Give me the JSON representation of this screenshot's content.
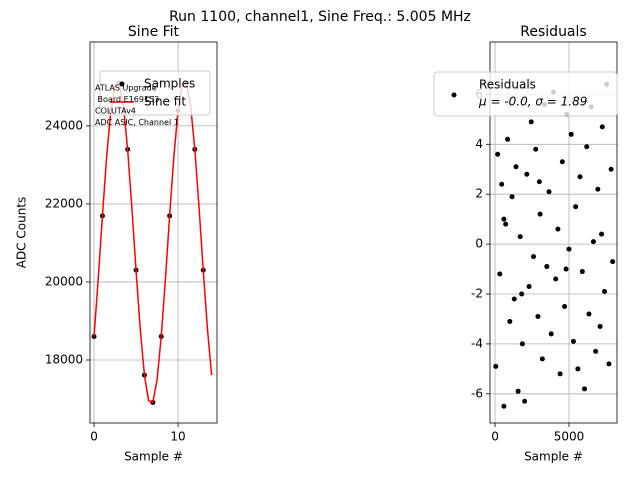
{
  "title": "Run 1100, channel1, Sine Freq.: 5.005 MHz",
  "chart_data": [
    {
      "type": "line",
      "title": "Sine Fit",
      "x_label": "Sample #",
      "y_label": "ADC Counts",
      "xlim": [
        -0.48,
        14.64
      ],
      "ylim": [
        16385,
        26150
      ],
      "xticks": [
        0,
        10
      ],
      "yticks": [
        18000,
        20000,
        22000,
        24000
      ],
      "grid": true,
      "legend": "upper right",
      "annotation": [
        "ATLAS Upgrade",
        " Board E169153",
        "COLUTAv4",
        "ADC ASIC, Channel 1"
      ],
      "series": [
        {
          "name": "Samples",
          "color": "#000000",
          "type": "scatter",
          "x": [
            0,
            1,
            2,
            3,
            4,
            5,
            6,
            7,
            8,
            9,
            10,
            11,
            12,
            13
          ],
          "values": [
            18601,
            21694,
            24387,
            25093,
            23399,
            20303,
            17613,
            16912,
            18601,
            21694,
            24387,
            25093,
            23399,
            20303
          ]
        },
        {
          "name": "Sine fit",
          "color": "#ff0000",
          "type": "line",
          "x": [
            0,
            0.5,
            1,
            1.5,
            2,
            2.5,
            3,
            3.5,
            4,
            4.5,
            5,
            5.5,
            6,
            6.5,
            7,
            7.5,
            8,
            8.5,
            9,
            9.5,
            10,
            10.5,
            11,
            11.5,
            12,
            12.5,
            13,
            13.5,
            14
          ],
          "values": [
            18601,
            20078,
            21694,
            23208,
            24387,
            25047,
            25093,
            24515,
            23399,
            21921,
            20303,
            18800,
            17613,
            16954,
            16912,
            17485,
            18601,
            20078,
            21694,
            23208,
            24387,
            25047,
            25093,
            24515,
            23399,
            21921,
            20303,
            18800,
            17613
          ]
        }
      ]
    },
    {
      "type": "scatter",
      "title": "Residuals",
      "x_label": "Sample #",
      "xlim": [
        -340,
        8245
      ],
      "ylim": [
        -7.17,
        8.1
      ],
      "xticks": [
        0,
        5000
      ],
      "yticks": [
        -6,
        -4,
        -2,
        0,
        2,
        4,
        6
      ],
      "grid": true,
      "legend": "upper right",
      "stats_label": "μ = -0.0, σ = 1.89",
      "series": [
        {
          "name": "Residuals",
          "color": "#000000",
          "type": "scatter",
          "x": [
            50,
            180,
            320,
            450,
            600,
            720,
            850,
            1000,
            1150,
            1300,
            1420,
            1560,
            1700,
            1850,
            2000,
            2150,
            2300,
            2450,
            2600,
            2750,
            2900,
            3050,
            3200,
            3350,
            3500,
            3650,
            3800,
            3950,
            4100,
            4250,
            4400,
            4550,
            4700,
            4850,
            5000,
            5150,
            5300,
            5450,
            5600,
            5750,
            5900,
            6050,
            6200,
            6350,
            6500,
            6650,
            6800,
            6950,
            7100,
            7250,
            7400,
            7550,
            7700,
            7850,
            7950,
            600,
            1800,
            3000,
            4800,
            7200
          ],
          "values": [
            -4.9,
            3.6,
            -1.2,
            2.4,
            -6.5,
            0.8,
            4.2,
            -3.1,
            1.9,
            -2.2,
            3.1,
            -5.9,
            0.3,
            -4.0,
            -6.3,
            2.8,
            -1.7,
            4.9,
            -0.5,
            3.8,
            -2.9,
            1.2,
            -4.6,
            5.6,
            -0.9,
            2.1,
            -3.6,
            6.1,
            -1.4,
            0.6,
            -5.2,
            3.3,
            -2.5,
            5.2,
            -0.2,
            4.4,
            -3.9,
            1.5,
            -5.0,
            2.7,
            -1.1,
            -5.8,
            3.9,
            -2.8,
            5.5,
            0.1,
            -4.3,
            2.2,
            -3.3,
            4.7,
            -1.9,
            6.4,
            -4.8,
            3.0,
            -0.7,
            1.0,
            -2.0,
            2.5,
            -1.0,
            0.4
          ]
        }
      ]
    }
  ]
}
